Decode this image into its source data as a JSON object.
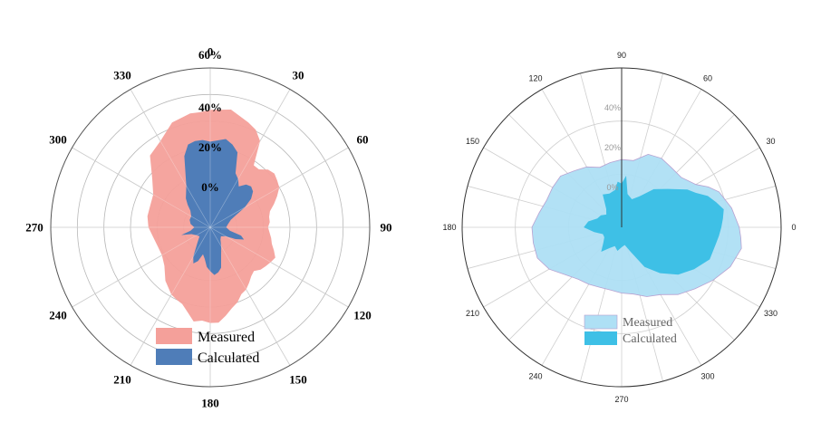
{
  "chart_data": [
    {
      "type": "polar-area",
      "angular_direction": "clockwise",
      "zero_position": "top",
      "angular_ticks": [
        "0",
        "30",
        "60",
        "90",
        "120",
        "150",
        "180",
        "210",
        "240",
        "270",
        "300",
        "330"
      ],
      "radial_ticks": [
        {
          "value": 0,
          "label": "0%"
        },
        {
          "value": 20,
          "label": "20%"
        },
        {
          "value": 40,
          "label": "40%"
        },
        {
          "value": 60,
          "label": "60%"
        }
      ],
      "rlim": [
        -20,
        60
      ],
      "legend": "bottom-left",
      "series": [
        {
          "name": "Measured",
          "color": "#f4a09a",
          "points": [
            [
              0,
              39
            ],
            [
              10,
              40
            ],
            [
              20,
              36
            ],
            [
              25,
              34
            ],
            [
              30,
              30
            ],
            [
              35,
              18
            ],
            [
              40,
              18
            ],
            [
              45,
              21
            ],
            [
              50,
              22
            ],
            [
              55,
              21
            ],
            [
              60,
              20
            ],
            [
              65,
              17
            ],
            [
              70,
              14
            ],
            [
              75,
              11
            ],
            [
              80,
              10
            ],
            [
              85,
              10
            ],
            [
              90,
              9
            ],
            [
              100,
              11
            ],
            [
              105,
              12
            ],
            [
              110,
              14
            ],
            [
              115,
              16
            ],
            [
              120,
              15
            ],
            [
              125,
              14
            ],
            [
              130,
              13
            ],
            [
              135,
              11
            ],
            [
              140,
              12
            ],
            [
              145,
              14
            ],
            [
              150,
              16
            ],
            [
              155,
              17
            ],
            [
              160,
              20
            ],
            [
              165,
              22
            ],
            [
              170,
              25
            ],
            [
              175,
              28
            ],
            [
              180,
              28
            ],
            [
              185,
              27
            ],
            [
              190,
              28
            ],
            [
              195,
              24
            ],
            [
              200,
              21
            ],
            [
              205,
              20
            ],
            [
              210,
              19
            ],
            [
              220,
              15
            ],
            [
              230,
              10
            ],
            [
              240,
              8
            ],
            [
              250,
              8
            ],
            [
              260,
              9
            ],
            [
              270,
              11
            ],
            [
              280,
              12
            ],
            [
              290,
              12
            ],
            [
              300,
              13
            ],
            [
              310,
              18
            ],
            [
              320,
              27
            ],
            [
              330,
              30
            ],
            [
              340,
              36
            ],
            [
              350,
              38
            ],
            [
              355,
              38
            ]
          ]
        },
        {
          "name": "Calculated",
          "color": "#4f7db8",
          "points": [
            [
              0,
              23
            ],
            [
              10,
              25
            ],
            [
              15,
              23
            ],
            [
              20,
              20
            ],
            [
              25,
              10
            ],
            [
              30,
              8
            ],
            [
              35,
              5
            ],
            [
              40,
              8
            ],
            [
              45,
              9
            ],
            [
              50,
              8
            ],
            [
              55,
              5
            ],
            [
              60,
              0
            ],
            [
              65,
              -6
            ],
            [
              70,
              -9
            ],
            [
              80,
              -11
            ],
            [
              90,
              -12
            ],
            [
              100,
              -10
            ],
            [
              105,
              -4
            ],
            [
              110,
              -2
            ],
            [
              115,
              -6
            ],
            [
              120,
              -11
            ],
            [
              130,
              -13
            ],
            [
              140,
              -12
            ],
            [
              150,
              -9
            ],
            [
              160,
              -4
            ],
            [
              165,
              1
            ],
            [
              170,
              3
            ],
            [
              175,
              4
            ],
            [
              180,
              2
            ],
            [
              185,
              0
            ],
            [
              190,
              -4
            ],
            [
              195,
              -6
            ],
            [
              200,
              -2
            ],
            [
              205,
              0
            ],
            [
              210,
              -3
            ],
            [
              220,
              -10
            ],
            [
              230,
              -13
            ],
            [
              240,
              -12
            ],
            [
              250,
              -10
            ],
            [
              255,
              -5
            ],
            [
              260,
              -10
            ],
            [
              270,
              -12
            ],
            [
              280,
              -10
            ],
            [
              290,
              -9
            ],
            [
              300,
              -9
            ],
            [
              310,
              -7
            ],
            [
              315,
              -4
            ],
            [
              320,
              -1
            ],
            [
              330,
              4
            ],
            [
              340,
              18
            ],
            [
              345,
              23
            ],
            [
              350,
              24
            ],
            [
              355,
              24
            ]
          ]
        }
      ]
    },
    {
      "type": "polar-area",
      "angular_direction": "counterclockwise",
      "zero_position": "right",
      "angular_ticks": [
        "0",
        "30",
        "60",
        "90",
        "120",
        "150",
        "180",
        "210",
        "240",
        "270",
        "300",
        "330"
      ],
      "radial_ticks": [
        {
          "value": 0,
          "label": "0%"
        },
        {
          "value": 20,
          "label": "20%"
        },
        {
          "value": 40,
          "label": "40%"
        }
      ],
      "rlim": [
        -20,
        60
      ],
      "legend": "bottom-center",
      "series": [
        {
          "name": "Measured",
          "color": "#aee0f5",
          "points": [
            [
              0,
              39
            ],
            [
              10,
              36
            ],
            [
              20,
              32
            ],
            [
              25,
              28
            ],
            [
              30,
              23
            ],
            [
              40,
              19
            ],
            [
              50,
              19
            ],
            [
              60,
              20
            ],
            [
              70,
              19
            ],
            [
              80,
              14
            ],
            [
              90,
              14
            ],
            [
              100,
              13
            ],
            [
              110,
              12
            ],
            [
              120,
              15
            ],
            [
              130,
              17
            ],
            [
              140,
              20
            ],
            [
              150,
              20
            ],
            [
              160,
              20
            ],
            [
              170,
              22
            ],
            [
              180,
              25
            ],
            [
              190,
              25
            ],
            [
              200,
              25
            ],
            [
              210,
              22
            ],
            [
              220,
              17
            ],
            [
              230,
              14
            ],
            [
              240,
              13
            ],
            [
              250,
              12
            ],
            [
              260,
              12
            ],
            [
              270,
              13
            ],
            [
              280,
              14
            ],
            [
              290,
              17
            ],
            [
              300,
              19
            ],
            [
              310,
              24
            ],
            [
              320,
              28
            ],
            [
              330,
              33
            ],
            [
              340,
              38
            ],
            [
              350,
              41
            ],
            [
              355,
              40
            ]
          ]
        },
        {
          "name": "Calculated",
          "color": "#3ec0e6",
          "points": [
            [
              0,
              30
            ],
            [
              5,
              31
            ],
            [
              10,
              32
            ],
            [
              15,
              29
            ],
            [
              20,
              26
            ],
            [
              25,
              21
            ],
            [
              30,
              18
            ],
            [
              40,
              10
            ],
            [
              50,
              5
            ],
            [
              60,
              -2
            ],
            [
              70,
              -5
            ],
            [
              80,
              -3
            ],
            [
              85,
              6
            ],
            [
              90,
              2
            ],
            [
              95,
              3
            ],
            [
              100,
              -1
            ],
            [
              110,
              -2
            ],
            [
              120,
              -1
            ],
            [
              130,
              -8
            ],
            [
              140,
              -10
            ],
            [
              150,
              -8
            ],
            [
              160,
              -7
            ],
            [
              170,
              -3
            ],
            [
              180,
              -1
            ],
            [
              190,
              -6
            ],
            [
              200,
              -10
            ],
            [
              210,
              -10
            ],
            [
              220,
              -8
            ],
            [
              230,
              -4
            ],
            [
              240,
              -8
            ],
            [
              250,
              -10
            ],
            [
              260,
              -8
            ],
            [
              270,
              -10
            ],
            [
              280,
              -11
            ],
            [
              290,
              -7
            ],
            [
              300,
              3
            ],
            [
              310,
              10
            ],
            [
              320,
              17
            ],
            [
              330,
              22
            ],
            [
              340,
              27
            ],
            [
              350,
              28
            ],
            [
              355,
              29
            ]
          ]
        }
      ]
    }
  ]
}
